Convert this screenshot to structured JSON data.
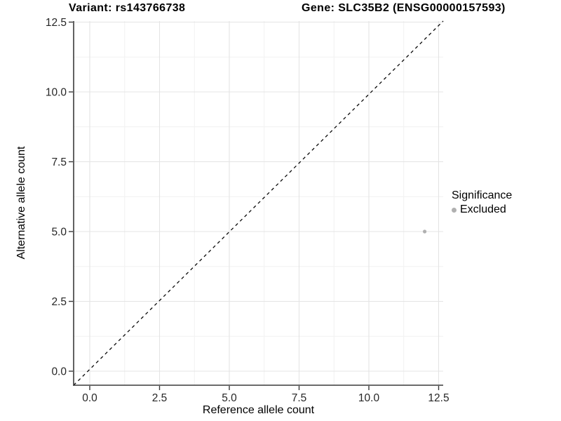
{
  "titles": {
    "variant": "Variant: rs143766738",
    "gene": "Gene: SLC35B2 (ENSG00000157593)"
  },
  "chart_data": {
    "type": "scatter",
    "title": "Variant: rs143766738 | Gene: SLC35B2 (ENSG00000157593)",
    "xlabel": "Reference allele count",
    "ylabel": "Alternative allele count",
    "x_ticks": [
      0.0,
      2.5,
      5.0,
      7.5,
      10.0,
      12.5
    ],
    "y_ticks": [
      0.0,
      2.5,
      5.0,
      7.5,
      10.0,
      12.5
    ],
    "xlim": [
      -0.6,
      13.2
    ],
    "ylim": [
      -0.5,
      12.6
    ],
    "grid": "major+minor",
    "points": [
      {
        "x": 12,
        "y": 5,
        "series": "Excluded",
        "color": "#b0b0b0"
      }
    ],
    "reference_line": {
      "type": "identity y=x",
      "style": "dashed",
      "color": "#0a0a0a"
    },
    "legend": {
      "title": "Significance",
      "position": "right",
      "items": [
        {
          "label": "Excluded",
          "color": "#b0b0b0"
        }
      ]
    },
    "colors": {
      "major_grid": "#e4e4e4",
      "minor_grid": "#f1f1f1",
      "axis_line": "#3a3a3a",
      "tick_label": "#262626"
    }
  }
}
